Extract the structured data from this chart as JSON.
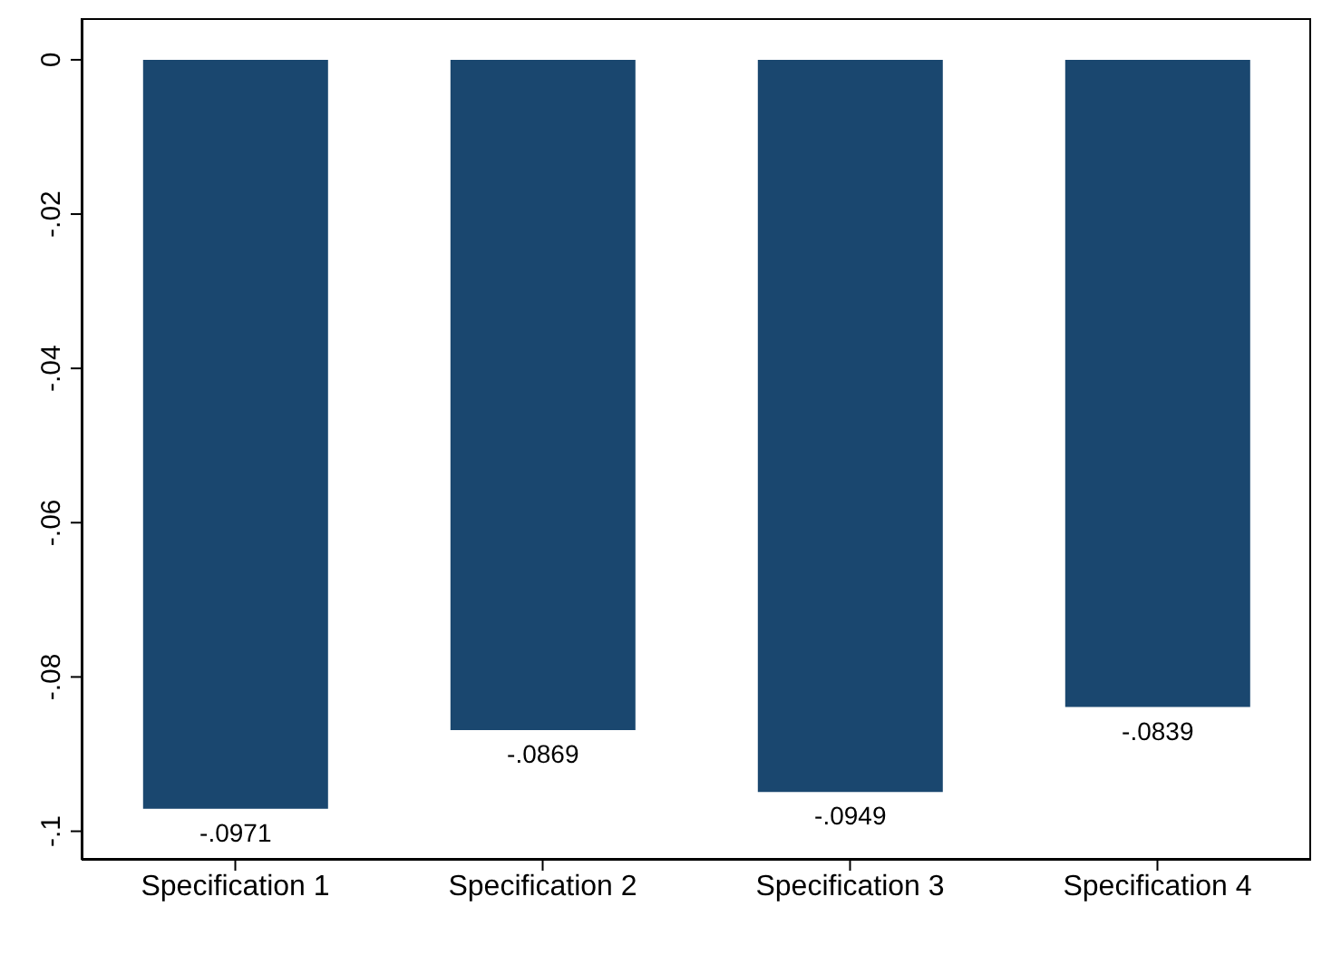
{
  "chart_data": {
    "type": "bar",
    "categories": [
      "Specification 1",
      "Specification 2",
      "Specification 3",
      "Specification 4"
    ],
    "values": [
      -0.0971,
      -0.0869,
      -0.0949,
      -0.0839
    ],
    "value_labels": [
      "-.0971",
      "-.0869",
      "-.0949",
      "-.0839"
    ],
    "color": "#1a476f",
    "ylim": [
      -0.1037,
      0.0054
    ],
    "yticks": [
      {
        "value": 0,
        "label": "0"
      },
      {
        "value": -0.02,
        "label": "-.02"
      },
      {
        "value": -0.04,
        "label": "-.04"
      },
      {
        "value": -0.06,
        "label": "-.06"
      },
      {
        "value": -0.08,
        "label": "-.08"
      },
      {
        "value": -0.1,
        "label": "-.1"
      }
    ],
    "grid": false,
    "legend": false
  }
}
